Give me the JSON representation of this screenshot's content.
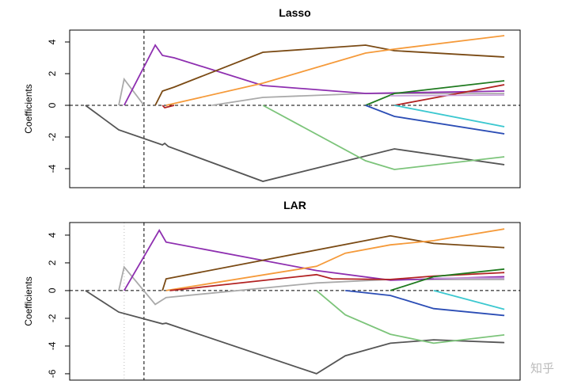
{
  "chart_data": [
    {
      "type": "line",
      "title": "Lasso",
      "ylabel": "Coefficients",
      "xlim": [
        0,
        100
      ],
      "ylim": [
        -5.2,
        4.75
      ],
      "yticks": [
        -4,
        -2,
        0,
        2,
        4
      ],
      "zero_line": true,
      "vlines": [
        {
          "x": 16.5,
          "style": "dashed"
        }
      ],
      "series": [
        {
          "color": "#555555",
          "x": [
            3.5,
            10.9,
            20.6,
            21.1,
            21.9,
            42.9,
            72.1,
            96.5
          ],
          "values": [
            0,
            -1.55,
            -2.5,
            -2.4,
            -2.6,
            -4.8,
            -2.75,
            -3.75
          ]
        },
        {
          "color": "#aaaaaa",
          "x": [
            10.9,
            12.1,
            16.5,
            25,
            31.6,
            42.9,
            65.7,
            96.5
          ],
          "values": [
            0,
            1.65,
            0,
            null,
            0,
            0.5,
            0.75,
            0.75
          ]
        },
        {
          "color": "#8e2fb0",
          "x": [
            12.1,
            19,
            20.6,
            23.2,
            42.9,
            65.7,
            96.5
          ],
          "values": [
            0,
            3.8,
            3.15,
            3.0,
            1.25,
            0.75,
            0.9
          ]
        },
        {
          "color": "#7a4a14",
          "x": [
            19,
            20.6,
            23.2,
            42.9,
            65.7,
            72.1,
            96.5
          ],
          "values": [
            0,
            0.9,
            1.15,
            3.35,
            3.8,
            3.45,
            3.05
          ]
        },
        {
          "color": "#f59a3a",
          "x": [
            21.4,
            42.9,
            65.7,
            72.1,
            96.5
          ],
          "values": [
            0,
            1.4,
            3.3,
            3.55,
            4.4
          ]
        },
        {
          "color": "#b22222",
          "x": [
            20.6,
            21.1,
            23.2,
            50,
            72.1,
            96.5
          ],
          "values": [
            0,
            -0.15,
            0,
            null,
            0,
            1.3
          ]
        },
        {
          "color": "#7cc47a",
          "x": [
            42.9,
            65.7,
            72.1,
            96.5
          ],
          "values": [
            0,
            -3.5,
            -4.05,
            -3.25
          ]
        },
        {
          "color": "#1f7a1f",
          "x": [
            65.7,
            72.1,
            96.5
          ],
          "values": [
            0,
            0.75,
            1.55
          ]
        },
        {
          "color": "#2b4db5",
          "x": [
            65.7,
            72.1,
            96.5
          ],
          "values": [
            0,
            -0.7,
            -1.8
          ]
        },
        {
          "color": "#3cc8d0",
          "x": [
            72.1,
            96.5
          ],
          "values": [
            0,
            -1.35
          ]
        },
        {
          "color": "#c9a0dc",
          "x": [
            71.2,
            96.5
          ],
          "values": [
            0.6,
            0.65
          ]
        }
      ]
    },
    {
      "type": "line",
      "title": "LAR",
      "ylabel": "Coefficients",
      "xlim": [
        0,
        100
      ],
      "ylim": [
        -6.46,
        4.91
      ],
      "yticks": [
        -6,
        -4,
        -2,
        0,
        2,
        4
      ],
      "zero_line": true,
      "vlines": [
        {
          "x": 12.1,
          "style": "dotted"
        },
        {
          "x": 16.5,
          "style": "dashed"
        }
      ],
      "series": [
        {
          "color": "#555555",
          "x": [
            3.5,
            10.9,
            20.6,
            21.4,
            54.8,
            61.2,
            71.2,
            80.8,
            96.5
          ],
          "values": [
            0,
            -1.55,
            -2.4,
            -2.35,
            -6,
            -4.7,
            -3.8,
            -3.55,
            -3.75
          ]
        },
        {
          "color": "#aaaaaa",
          "x": [
            10.9,
            12.1,
            19,
            21.4,
            54.8,
            71.2,
            96.5
          ],
          "values": [
            0,
            1.7,
            -1.0,
            -0.5,
            0.55,
            0.8,
            0.8
          ]
        },
        {
          "color": "#8e2fb0",
          "x": [
            12.1,
            19.9,
            21.4,
            54.8,
            71.2,
            96.5
          ],
          "values": [
            0,
            4.35,
            3.5,
            1.45,
            0.75,
            1.0
          ]
        },
        {
          "color": "#7a4a14",
          "x": [
            20.6,
            21.4,
            71.2,
            80.8,
            96.5
          ],
          "values": [
            0,
            0.85,
            3.95,
            3.4,
            3.1
          ]
        },
        {
          "color": "#f59a3a",
          "x": [
            21.4,
            54.8,
            61.2,
            71.2,
            80.8,
            96.5
          ],
          "values": [
            0,
            1.75,
            2.7,
            3.3,
            3.6,
            4.45
          ]
        },
        {
          "color": "#b22222",
          "x": [
            22.3,
            54.8,
            58.3,
            71.2,
            80.8,
            96.5
          ],
          "values": [
            0,
            1.15,
            0.85,
            0.8,
            1.05,
            1.3
          ]
        },
        {
          "color": "#7cc47a",
          "x": [
            54.8,
            61.2,
            71.2,
            80.8,
            96.5
          ],
          "values": [
            0,
            -1.75,
            -3.15,
            -3.8,
            -3.2
          ]
        },
        {
          "color": "#2b4db5",
          "x": [
            61.2,
            71.2,
            80.8,
            96.5
          ],
          "values": [
            0,
            -0.35,
            -1.3,
            -1.8
          ]
        },
        {
          "color": "#1f7a1f",
          "x": [
            71.2,
            80.8,
            96.5
          ],
          "values": [
            0,
            1.0,
            1.55
          ]
        },
        {
          "color": "#3cc8d0",
          "x": [
            80.8,
            96.5
          ],
          "values": [
            0,
            -1.35
          ]
        },
        {
          "color": "#c9a0dc",
          "x": [
            80.8,
            96.5
          ],
          "values": [
            0.9,
            0.9
          ]
        }
      ]
    }
  ],
  "watermark": "知乎"
}
